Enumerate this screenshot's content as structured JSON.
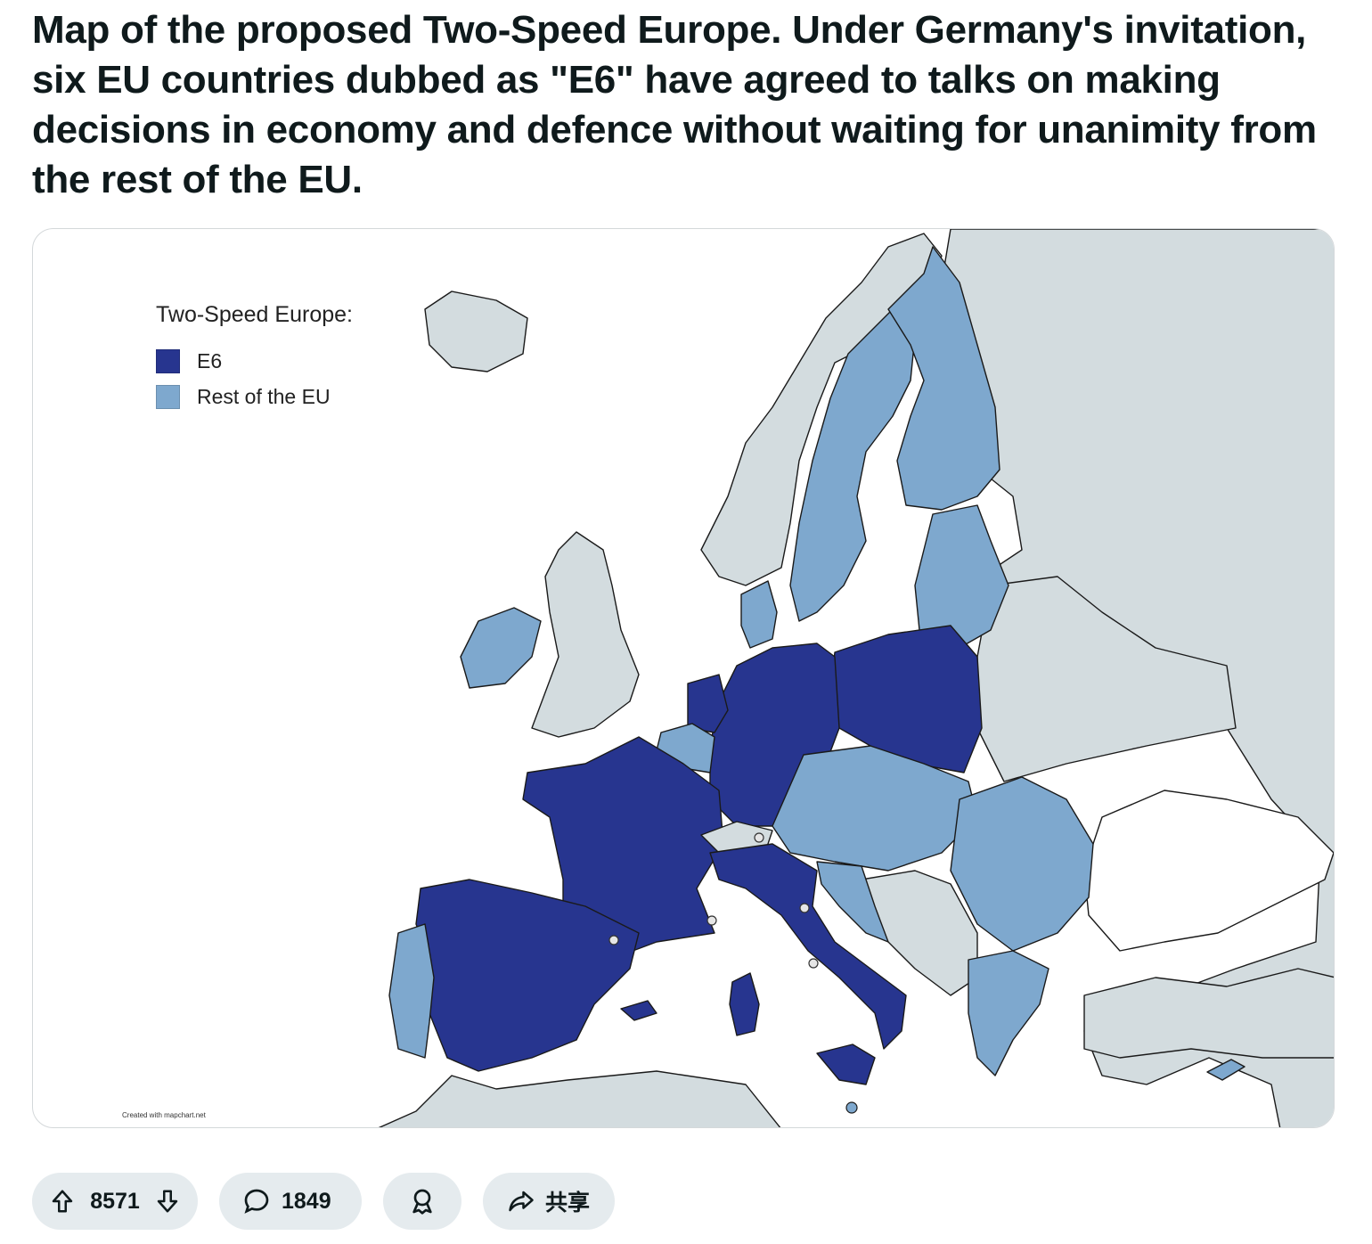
{
  "post": {
    "title": "Map of the proposed Two-Speed Europe. Under Germany's invitation, six EU countries dubbed as \"E6\" have agreed to talks on making decisions in economy and defence without waiting for unanimity from the rest of the EU."
  },
  "map": {
    "legend_title": "Two-Speed Europe:",
    "legend": [
      {
        "label": "E6",
        "color": "#27358f"
      },
      {
        "label": "Rest of the EU",
        "color": "#7ea8ce"
      }
    ],
    "credit": "Created with mapchart.net",
    "colors": {
      "non_eu": "#d3dcdf",
      "sea": "#ffffff",
      "border": "#1a1a1a"
    }
  },
  "actions": {
    "upvote_count": "8571",
    "comment_count": "1849",
    "share_label": "共享",
    "icons": [
      "arrow-up-icon",
      "arrow-down-icon",
      "comment-icon",
      "award-icon",
      "share-icon"
    ]
  }
}
